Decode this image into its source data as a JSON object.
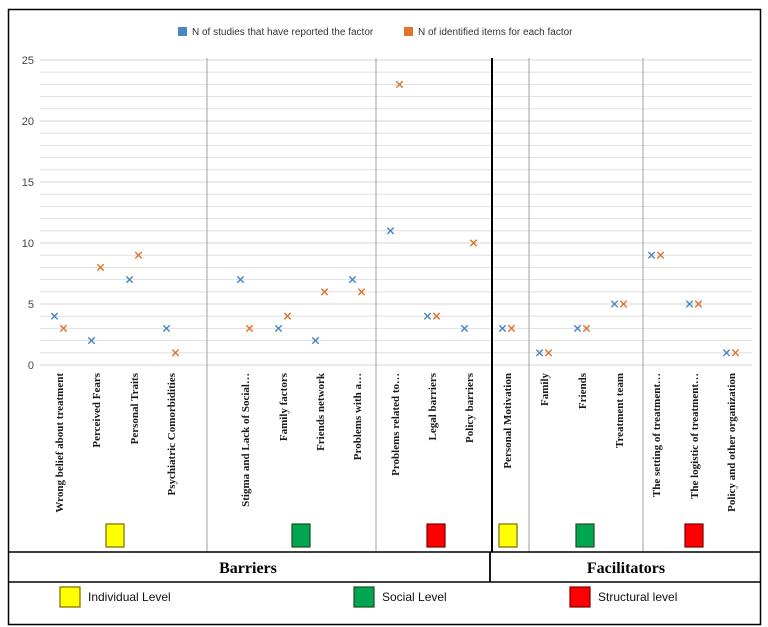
{
  "chart_data": {
    "type": "scatter",
    "title": "",
    "xlabel": "",
    "ylabel": "",
    "ylim": [
      0,
      25
    ],
    "yticks": [
      0,
      5,
      10,
      15,
      20,
      25
    ],
    "categories": [
      "Wrong belief about treatment",
      "Perceived Fears",
      "Personal Traits",
      "Psychiatric Comorbidities",
      "Stigma and Lack of Social…",
      "Family factors",
      "Friends network",
      "Problems with a…",
      "Problems related to…",
      "Legal barriers",
      "Policy barriers",
      "Personal Motivation",
      "Family",
      "Friends",
      "Treatment team",
      "The setting of treatment…",
      "The logistic of treatment…",
      "Policy and other organization"
    ],
    "series": [
      {
        "name": "N of studies that have reported the factor",
        "color": "#4a86c5",
        "values": [
          4,
          2,
          7,
          3,
          7,
          3,
          2,
          7,
          11,
          4,
          3,
          3,
          1,
          3,
          5,
          9,
          5,
          1
        ]
      },
      {
        "name": "N of identified items for each factor",
        "color": "#e0722a",
        "values": [
          3,
          8,
          9,
          1,
          3,
          4,
          6,
          6,
          23,
          4,
          10,
          3,
          1,
          3,
          5,
          9,
          5,
          1
        ]
      }
    ],
    "groups": [
      {
        "section": "Barriers",
        "level": "Individual Level",
        "color": "#ffff00",
        "count": 4
      },
      {
        "section": "Barriers",
        "level": "Social Level",
        "color": "#00a651",
        "count": 4
      },
      {
        "section": "Barriers",
        "level": "Structural level",
        "color": "#ff0000",
        "count": 3
      },
      {
        "section": "Facilitators",
        "level": "Individual Level",
        "color": "#ffff00",
        "count": 1
      },
      {
        "section": "Facilitators",
        "level": "Social Level",
        "color": "#00a651",
        "count": 3
      },
      {
        "section": "Facilitators",
        "level": "Structural level",
        "color": "#ff0000",
        "count": 3
      }
    ]
  },
  "sections": {
    "barriers": "Barriers",
    "facilitators": "Facilitators"
  },
  "level_key": [
    {
      "label": "Individual Level",
      "color": "#ffff00"
    },
    {
      "label": "Social Level",
      "color": "#00a651"
    },
    {
      "label": "Structural level",
      "color": "#ff0000"
    }
  ]
}
